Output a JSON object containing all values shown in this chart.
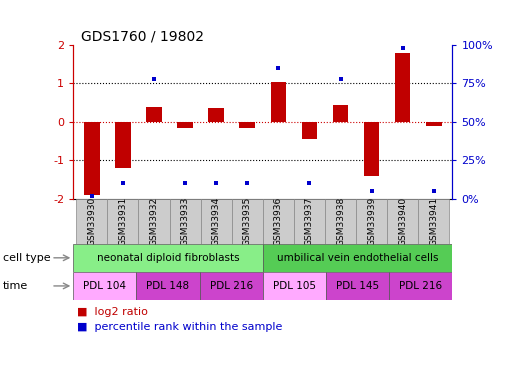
{
  "title": "GDS1760 / 19802",
  "samples": [
    "GSM33930",
    "GSM33931",
    "GSM33932",
    "GSM33933",
    "GSM33934",
    "GSM33935",
    "GSM33936",
    "GSM33937",
    "GSM33938",
    "GSM33939",
    "GSM33940",
    "GSM33941"
  ],
  "log2_ratio": [
    -1.9,
    -1.2,
    0.4,
    -0.15,
    0.35,
    -0.15,
    1.05,
    -0.45,
    0.45,
    -1.4,
    1.8,
    -0.1
  ],
  "percentile_rank": [
    2,
    10,
    78,
    10,
    10,
    10,
    85,
    10,
    78,
    5,
    98,
    5
  ],
  "ylim_left": [
    -2,
    2
  ],
  "ylim_right": [
    0,
    100
  ],
  "bar_color": "#c00000",
  "dot_color": "#0000cc",
  "cell_type_groups": [
    {
      "label": "neonatal diploid fibroblasts",
      "start": 0,
      "end": 6,
      "color": "#88ee88"
    },
    {
      "label": "umbilical vein endothelial cells",
      "start": 6,
      "end": 12,
      "color": "#55cc55"
    }
  ],
  "time_groups": [
    {
      "label": "PDL 104",
      "start": 0,
      "end": 2,
      "color": "#ffaaff"
    },
    {
      "label": "PDL 148",
      "start": 2,
      "end": 4,
      "color": "#cc44cc"
    },
    {
      "label": "PDL 216",
      "start": 4,
      "end": 6,
      "color": "#cc44cc"
    },
    {
      "label": "PDL 105",
      "start": 6,
      "end": 8,
      "color": "#ffaaff"
    },
    {
      "label": "PDL 145",
      "start": 8,
      "end": 10,
      "color": "#cc44cc"
    },
    {
      "label": "PDL 216",
      "start": 10,
      "end": 12,
      "color": "#cc44cc"
    }
  ],
  "legend_items": [
    {
      "label": "log2 ratio",
      "color": "#c00000"
    },
    {
      "label": "percentile rank within the sample",
      "color": "#0000cc"
    }
  ],
  "bg_color": "#ffffff",
  "right_axis_color": "#0000cc",
  "left_axis_color": "#cc0000",
  "sample_box_color": "#cccccc",
  "bar_width": 0.5
}
